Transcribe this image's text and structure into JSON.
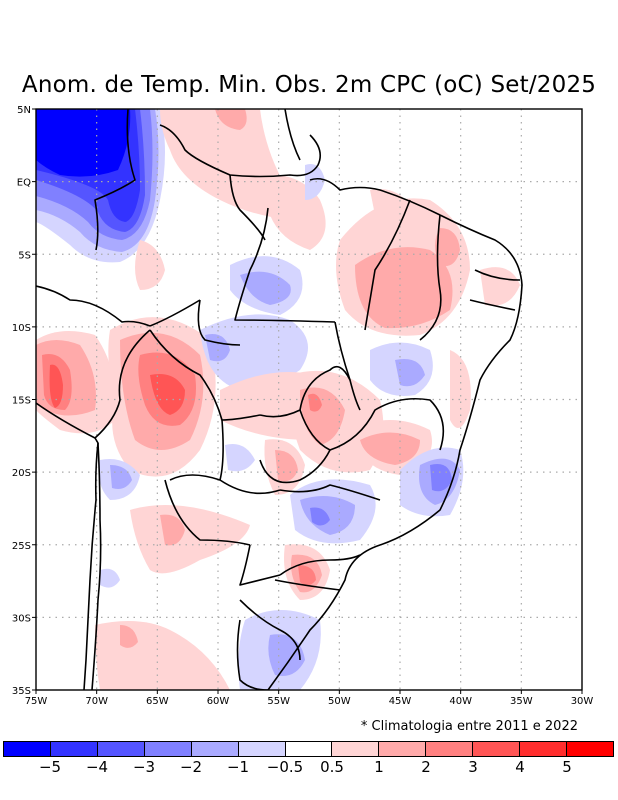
{
  "title": "Anom. de Temp. Min. Obs. 2m CPC (oC) Set/2025",
  "note": "* Climatologia entre 2011 e 2022",
  "map": {
    "type": "filled-contour-map",
    "variable": "Minimum temperature anomaly at 2m (oC)",
    "lon_range": [
      -75,
      -30
    ],
    "lat_range": [
      -35,
      5
    ],
    "lon_ticks": [
      "75W",
      "70W",
      "65W",
      "60W",
      "55W",
      "50W",
      "45W",
      "40W",
      "35W",
      "30W"
    ],
    "lat_ticks": [
      "5N",
      "EQ",
      "5S",
      "10S",
      "15S",
      "20S",
      "25S",
      "30S",
      "35S"
    ],
    "grid": "dotted"
  },
  "colorbar": {
    "colors": [
      "#0000ff",
      "#3333ff",
      "#5555ff",
      "#8080ff",
      "#aaaaff",
      "#d5d5ff",
      "#ffffff",
      "#ffd5d5",
      "#ffaaaa",
      "#ff8080",
      "#ff5555",
      "#ff2d2d",
      "#ff0000"
    ],
    "labels": [
      "-5",
      "-4",
      "-3",
      "-2",
      "-1",
      "-0.5",
      "0.5",
      "1",
      "2",
      "3",
      "4",
      "5"
    ]
  }
}
